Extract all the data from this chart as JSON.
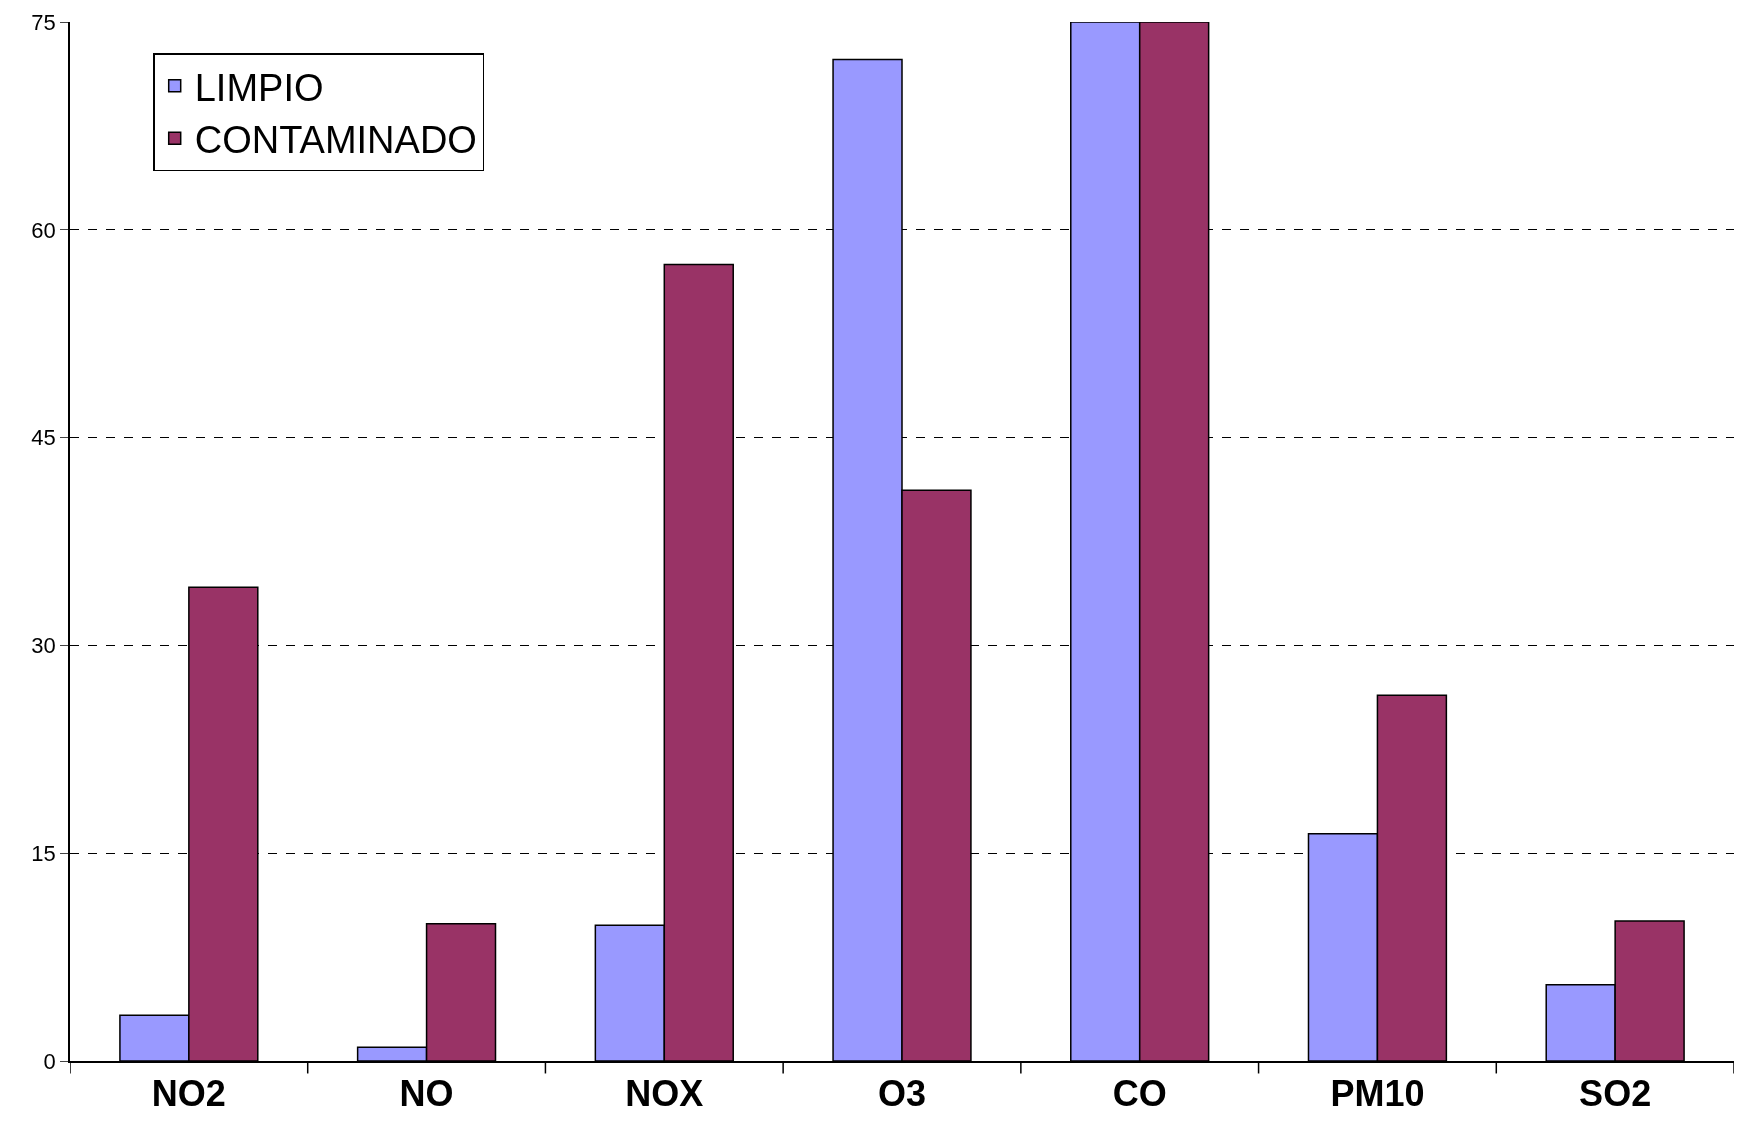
{
  "chart_data": {
    "type": "bar",
    "categories": [
      "NO2",
      "NO",
      "NOX",
      "O3",
      "CO",
      "PM10",
      "SO2"
    ],
    "series": [
      {
        "name": "LIMPIO",
        "color": "#9999ff",
        "values": [
          3.3,
          1.0,
          9.8,
          72.3,
          75,
          16.4,
          5.5
        ]
      },
      {
        "name": "CONTAMINADO",
        "color": "#993366",
        "values": [
          34.2,
          9.9,
          57.5,
          41.2,
          75,
          26.4,
          10.1
        ]
      }
    ],
    "ylim": [
      0,
      75
    ],
    "yticks": [
      0,
      15,
      30,
      45,
      60,
      75
    ],
    "grid": "y",
    "legend": "top left"
  }
}
